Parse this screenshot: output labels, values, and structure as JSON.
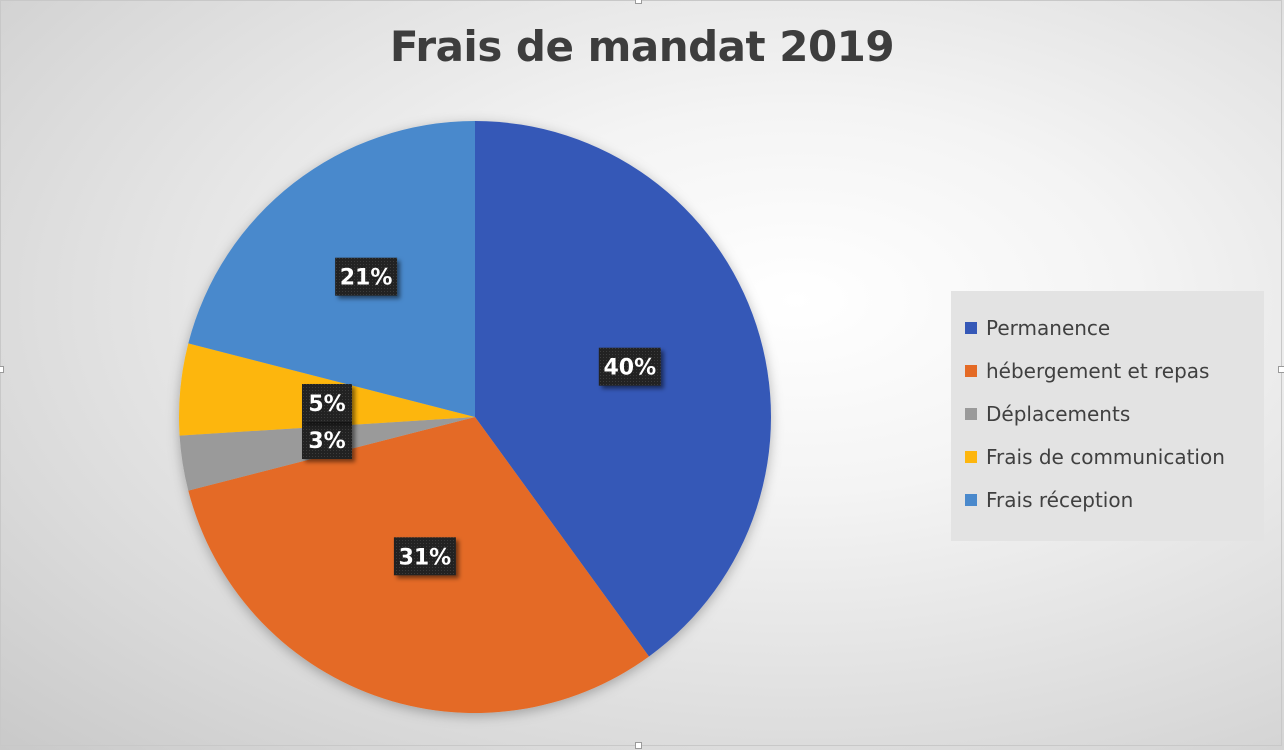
{
  "chart_data": {
    "type": "pie",
    "title": "Frais de mandat 2019",
    "legend_position": "right",
    "slices": [
      {
        "label": "Permanence",
        "value": 40,
        "display": "40%",
        "color": "#3558b7"
      },
      {
        "label": "hébergement et repas",
        "value": 31,
        "display": "31%",
        "color": "#e46a25"
      },
      {
        "label": "Déplacements",
        "value": 3,
        "display": "3%",
        "color": "#9a9a9a"
      },
      {
        "label": "Frais de communication",
        "value": 5,
        "display": "5%",
        "color": "#fdb60e"
      },
      {
        "label": "Frais réception",
        "value": 21,
        "display": "21%",
        "color": "#4a89cc"
      }
    ]
  }
}
